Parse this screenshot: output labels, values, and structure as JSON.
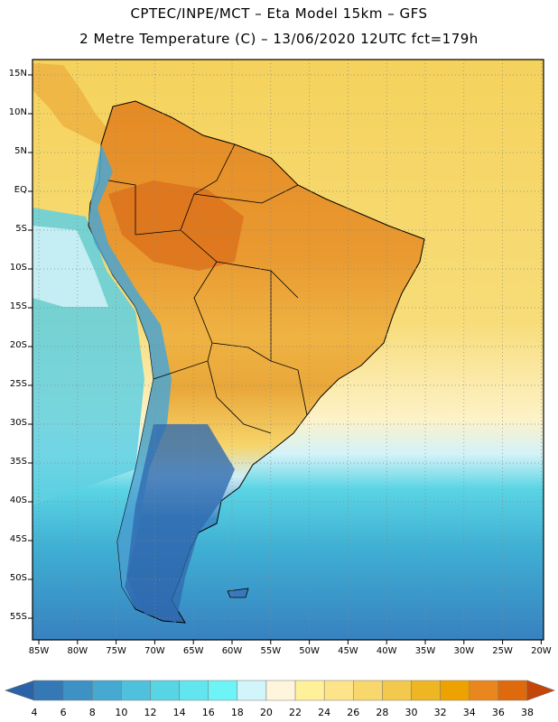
{
  "header": {
    "title_line1": "CPTEC/INPE/MCT –  Eta Model 15km – GFS",
    "title_line2": "2 Metre Temperature (C) – 13/06/2020 12UTC fct=179h"
  },
  "map": {
    "lat_labels": [
      "15N",
      "10N",
      "5N",
      "EQ",
      "5S",
      "10S",
      "15S",
      "20S",
      "25S",
      "30S",
      "35S",
      "40S",
      "45S",
      "50S",
      "55S"
    ],
    "lon_labels": [
      "85W",
      "80W",
      "75W",
      "70W",
      "65W",
      "60W",
      "55W",
      "50W",
      "45W",
      "40W",
      "35W",
      "30W",
      "25W",
      "20W"
    ],
    "ocean_warm_color": "#f2c94c",
    "land_hot_color": "#e0821e",
    "cold_color": "#2f6fb5"
  },
  "colorbar": {
    "labels": [
      "4",
      "6",
      "8",
      "10",
      "12",
      "14",
      "16",
      "18",
      "20",
      "22",
      "24",
      "26",
      "28",
      "30",
      "32",
      "34",
      "36",
      "38"
    ],
    "colors": [
      "#2b63a8",
      "#3479b5",
      "#3d91c4",
      "#45a9d2",
      "#4fc1dd",
      "#57d5e4",
      "#63e5ef",
      "#6ef4f7",
      "#d2f4fb",
      "#fff5dc",
      "#fff19a",
      "#fde48a",
      "#f8d76d",
      "#f2c94c",
      "#efb624",
      "#eea200",
      "#e9871e",
      "#de6a0d",
      "#c44709"
    ]
  }
}
